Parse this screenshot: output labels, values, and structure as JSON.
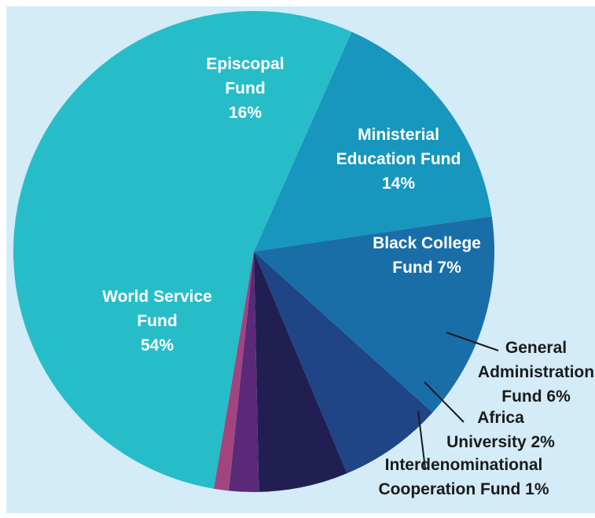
{
  "chart_data": {
    "type": "pie",
    "title": "",
    "background_color": "#d3ecf8",
    "slices": [
      {
        "label_lines": [
          "Episcopal",
          "Fund",
          "16%"
        ],
        "value": 16,
        "color": "#1797bd",
        "label_color": "#ffffff"
      },
      {
        "label_lines": [
          "Ministerial",
          "Education Fund",
          "14%"
        ],
        "value": 14,
        "color": "#1a6ea8",
        "label_color": "#ffffff"
      },
      {
        "label_lines": [
          "Black College",
          "Fund 7%"
        ],
        "value": 7,
        "color": "#1f4586",
        "label_color": "#ffffff"
      },
      {
        "label_lines": [
          "General",
          "Administration",
          "Fund 6%"
        ],
        "value": 6,
        "color": "#211f52",
        "label_color": "#1a1a1a"
      },
      {
        "label_lines": [
          "Africa",
          "University 2%"
        ],
        "value": 2,
        "color": "#5a2a78",
        "label_color": "#1a1a1a"
      },
      {
        "label_lines": [
          "Interdenominational",
          "Cooperation Fund 1%"
        ],
        "value": 1,
        "color": "#a2457f",
        "label_color": "#1a1a1a"
      },
      {
        "label_lines": [
          "World Service",
          "Fund",
          "54%"
        ],
        "value": 54,
        "color": "#27bdc8",
        "label_color": "#ffffff"
      }
    ]
  }
}
